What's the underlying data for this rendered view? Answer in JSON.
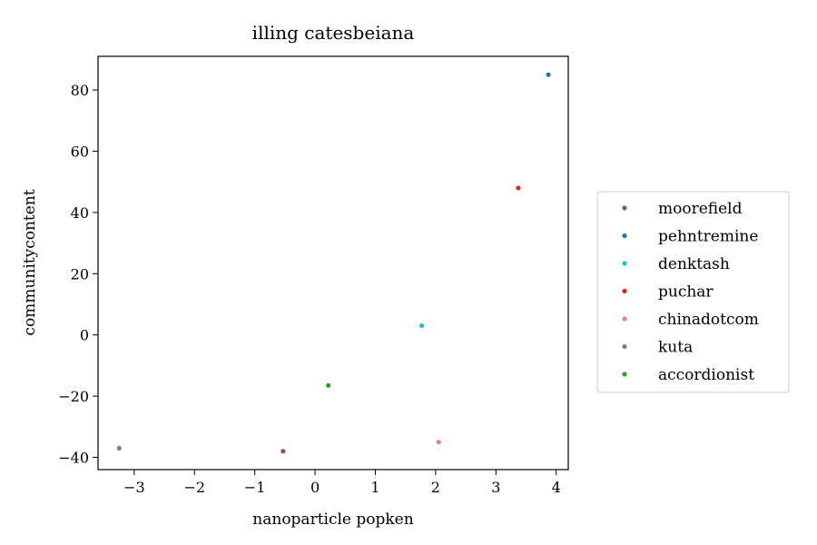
{
  "chart_data": {
    "type": "scatter",
    "title": "illing catesbeiana",
    "xlabel": "nanoparticle popken",
    "ylabel": "communitycontent",
    "xlim": [
      -3.6,
      4.2
    ],
    "ylim": [
      -44,
      91
    ],
    "xticks": [
      -3,
      -2,
      -1,
      0,
      1,
      2,
      3,
      4
    ],
    "yticks": [
      -40,
      -20,
      0,
      20,
      40,
      60,
      80
    ],
    "grid": false,
    "legend_position": "right-outside",
    "series": [
      {
        "name": "moorefield",
        "color": "#8c564b",
        "points": [
          [
            -0.53,
            -38
          ]
        ]
      },
      {
        "name": "pehntremine",
        "color": "#1f77b4",
        "points": [
          [
            3.87,
            85
          ]
        ]
      },
      {
        "name": "denktash",
        "color": "#17becf",
        "points": [
          [
            1.77,
            3
          ]
        ]
      },
      {
        "name": "puchar",
        "color": "#d62728",
        "points": [
          [
            3.37,
            48
          ]
        ]
      },
      {
        "name": "chinadotcom",
        "color": "#e377c2",
        "points": [
          [
            2.05,
            -35
          ]
        ]
      },
      {
        "name": "kuta",
        "color": "#7f7f7f",
        "points": [
          [
            -3.25,
            -37
          ]
        ]
      },
      {
        "name": "accordionist",
        "color": "#2ca02c",
        "points": [
          [
            0.22,
            -16.5
          ]
        ]
      }
    ]
  }
}
